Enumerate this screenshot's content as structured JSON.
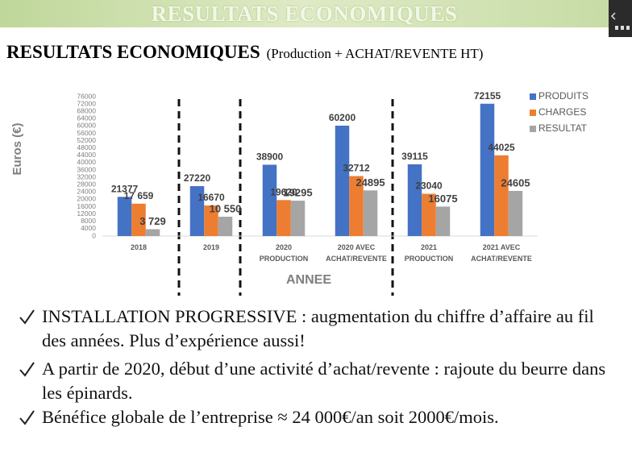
{
  "banner": "RESULTATS ECONOMIQUES",
  "slide": {
    "title": "RESULTATS ECONOMIQUES",
    "subtitle": "(Production + ACHAT/REVENTE HT)"
  },
  "chart_data": {
    "type": "bar",
    "y_label": "Euros (€)",
    "x_label": "ANNEE",
    "categories": [
      "2018",
      "2019",
      "2020\nPRODUCTION",
      "2020 AVEC\nACHAT/REVENTE",
      "2021\nPRODUCTION",
      "2021 AVEC\nACHAT/REVENTE"
    ],
    "series": [
      {
        "name": "PRODUITS",
        "color": "#4472c4",
        "values": [
          21377,
          27220,
          38900,
          60200,
          39115,
          72155
        ]
      },
      {
        "name": "CHARGES",
        "color": "#ed7d31",
        "values": [
          17659,
          16670,
          19620,
          32712,
          23040,
          44025
        ],
        "value_labels": [
          "17 659",
          "16670",
          "19620",
          "32712",
          "23040",
          "44025"
        ]
      },
      {
        "name": "RESULTAT",
        "color": "#a5a5a5",
        "values": [
          3729,
          10550,
          19295,
          24895,
          16075,
          24605
        ],
        "value_labels": [
          "3 729",
          "10 550",
          "19295",
          "24895",
          "16075",
          "24605"
        ]
      }
    ],
    "ylim": [
      0,
      76000
    ],
    "yticks": [
      0,
      4000,
      8000,
      12000,
      16000,
      20000,
      24000,
      28000,
      32000,
      36000,
      40000,
      44000,
      48000,
      52000,
      56000,
      60000,
      64000,
      68000,
      72000,
      76000
    ],
    "grid": false,
    "legend": "top-right"
  },
  "bullets": [
    "INSTALLATION PROGRESSIVE : augmentation du chiffre d’affaire au fil des années. Plus d’expérience aussi!",
    "A partir de 2020, début d’une activité d’achat/revente : rajoute du beurre dans les épinards.",
    "Bénéfice globale de l’entreprise ≈ 24 000€/an soit 2000€/mois."
  ]
}
